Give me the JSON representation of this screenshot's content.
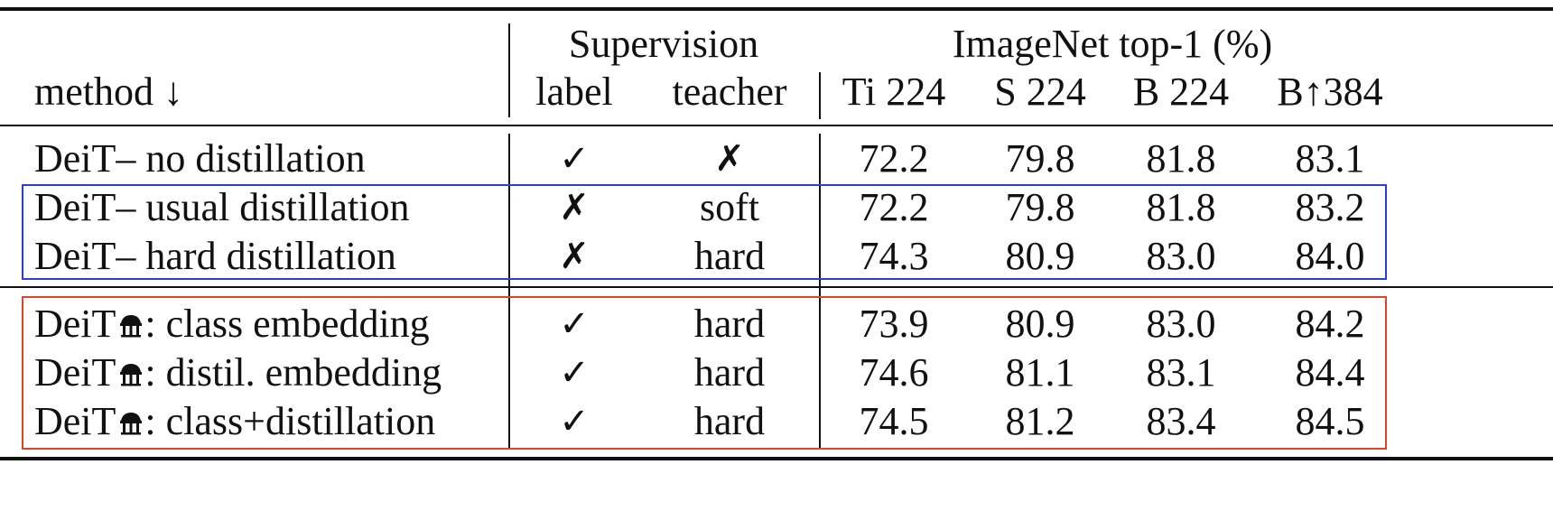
{
  "header": {
    "supervision": "Supervision",
    "imagenet": "ImageNet top-1 (%)",
    "method": "method ↓",
    "label": "label",
    "teacher": "teacher",
    "cols": [
      "Ti 224",
      "S 224",
      "B 224",
      "B↑384"
    ]
  },
  "marks": {
    "check": "✓",
    "cross": "✗"
  },
  "groups": {
    "plain": {
      "rows": [
        {
          "method": "DeiT– no distillation",
          "label": "✓",
          "teacher": "✗",
          "values": [
            "72.2",
            "79.8",
            "81.8",
            "83.1"
          ]
        }
      ]
    },
    "usual": {
      "box_color": "#2a3fd8",
      "rows": [
        {
          "method": "DeiT– usual distillation",
          "label": "✗",
          "teacher": "soft",
          "values": [
            "72.2",
            "79.8",
            "81.8",
            "83.2"
          ]
        },
        {
          "method": "DeiT– hard distillation",
          "label": "✗",
          "teacher": "hard",
          "values": [
            "74.3",
            "80.9",
            "83.0",
            "84.0"
          ]
        }
      ]
    },
    "alembic": {
      "box_color": "#e0442a",
      "prefix": "DeiT",
      "icon": "alembic-icon",
      "rows": [
        {
          "method": ": class embedding",
          "label": "✓",
          "teacher": "hard",
          "values": [
            "73.9",
            "80.9",
            "83.0",
            "84.2"
          ]
        },
        {
          "method": ": distil. embedding",
          "label": "✓",
          "teacher": "hard",
          "values": [
            "74.6",
            "81.1",
            "83.1",
            "84.4"
          ]
        },
        {
          "method": ": class+distillation",
          "label": "✓",
          "teacher": "hard",
          "values": [
            "74.5",
            "81.2",
            "83.4",
            "84.5"
          ]
        }
      ]
    }
  }
}
